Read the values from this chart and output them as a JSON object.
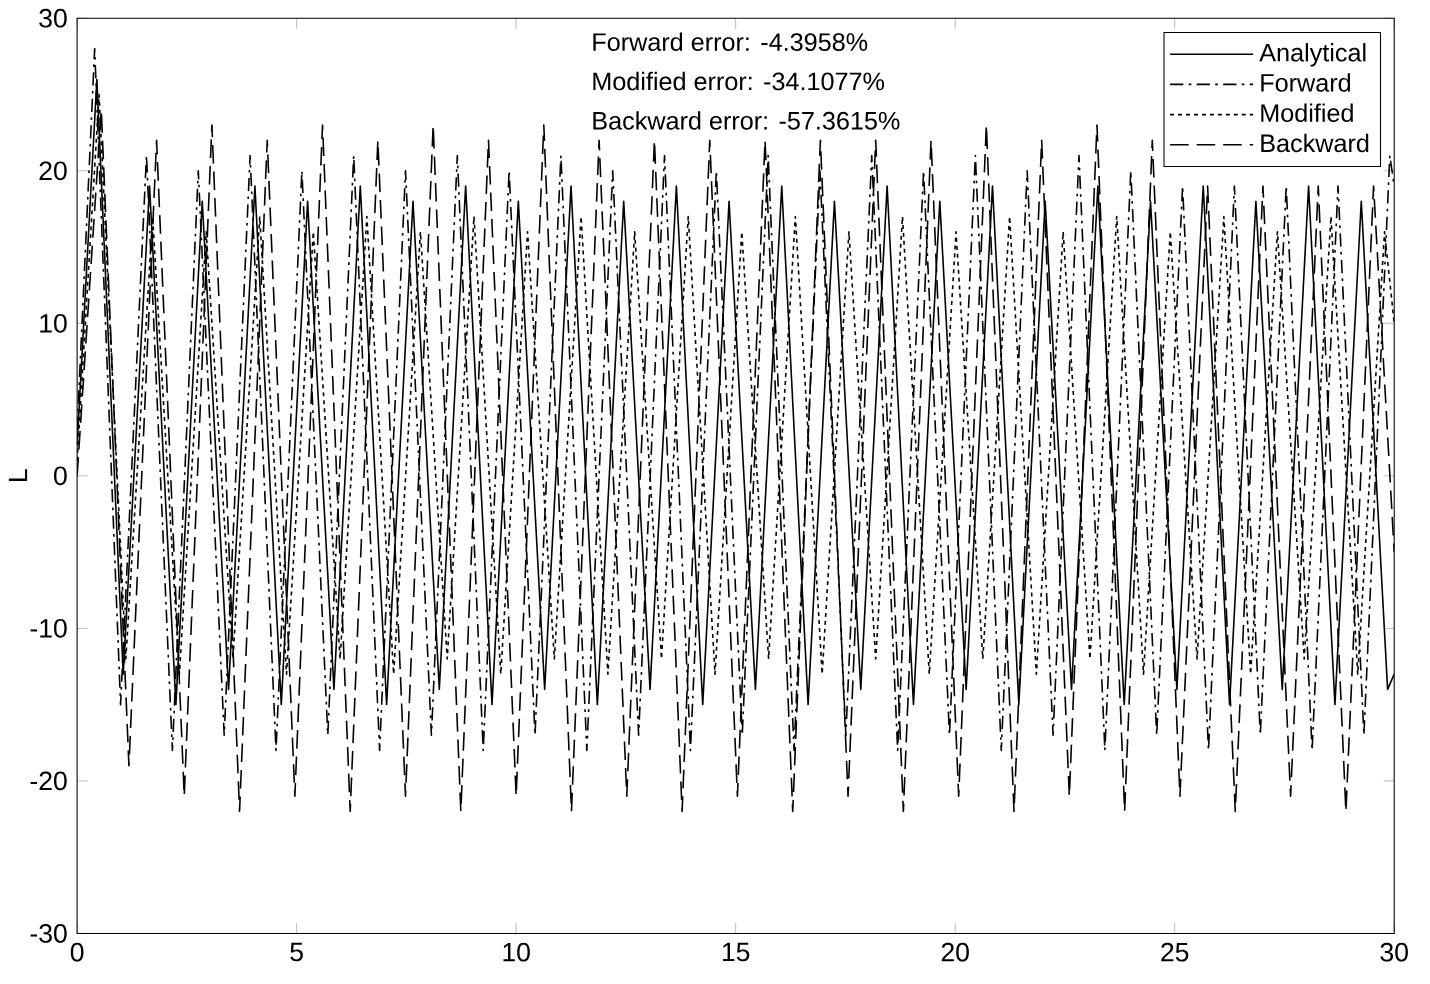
{
  "chart_data": {
    "type": "line",
    "ylabel": "L",
    "xlim": [
      0,
      30
    ],
    "ylim": [
      -30,
      30
    ],
    "xticks": [
      0,
      5,
      10,
      15,
      20,
      25,
      30
    ],
    "yticks": [
      -30,
      -20,
      -10,
      0,
      10,
      20,
      30
    ],
    "grid": false,
    "legend": "top right",
    "marker": "none",
    "annotations": [
      "Forward error: -4.3958%",
      "Modified error: -34.1077%",
      "Backward error: -57.3615%"
    ],
    "series": [
      {
        "name": "Analytical",
        "color": "#000000",
        "line_style": "solid",
        "x": [
          0,
          0.45,
          1.05,
          1.65,
          2.25,
          2.85,
          3.45,
          4.05,
          4.65,
          5.25,
          5.85,
          6.45,
          7.05,
          7.65,
          8.25,
          8.85,
          9.45,
          10.05,
          10.65,
          11.25,
          11.85,
          12.45,
          13.05,
          13.65,
          14.25,
          14.85,
          15.45,
          16.05,
          16.65,
          17.25,
          17.85,
          18.45,
          19.05,
          19.65,
          20.25,
          20.85,
          21.45,
          22.05,
          22.65,
          23.25,
          23.85,
          24.45,
          25.05,
          25.65,
          26.25,
          26.85,
          27.45,
          28.05,
          28.65,
          29.25,
          29.85,
          30
        ],
        "values": [
          2,
          26,
          -13,
          19,
          -15,
          18,
          -14,
          19,
          -15,
          18,
          -14,
          19,
          -15,
          18,
          -14,
          19,
          -15,
          18,
          -14,
          19,
          -15,
          18,
          -14,
          19,
          -15,
          18,
          -14,
          19,
          -15,
          18,
          -14,
          19,
          -15,
          18,
          -14,
          19,
          -15,
          18,
          -14,
          19,
          -15,
          18,
          -14,
          19,
          -15,
          18,
          -14,
          19,
          -15,
          18,
          -14,
          -13
        ]
      },
      {
        "name": "Forward",
        "color": "#000000",
        "line_style": "dashdot",
        "x": [
          0,
          0.4,
          0.99,
          1.58,
          2.17,
          2.76,
          3.35,
          3.94,
          4.53,
          5.12,
          5.71,
          6.3,
          6.89,
          7.48,
          8.07,
          8.66,
          9.25,
          9.84,
          10.43,
          11.02,
          11.61,
          12.2,
          12.79,
          13.38,
          13.97,
          14.56,
          15.15,
          15.74,
          16.33,
          16.92,
          17.51,
          18.1,
          18.69,
          19.28,
          19.87,
          20.46,
          21.05,
          21.64,
          22.23,
          22.82,
          23.41,
          24.0,
          24.59,
          25.18,
          25.77,
          26.36,
          26.95,
          27.54,
          28.13,
          28.72,
          29.31,
          29.9,
          30
        ],
        "values": [
          3,
          28,
          -15,
          21,
          -18,
          20,
          -17,
          21,
          -18,
          20,
          -17,
          21,
          -18,
          20,
          -17,
          21,
          -18,
          20,
          -17,
          21,
          -18,
          20,
          -17,
          21,
          -18,
          20,
          -17,
          21,
          -18,
          20,
          -17,
          21,
          -18,
          20,
          -17,
          21,
          -18,
          20,
          -17,
          21,
          -18,
          20,
          -17,
          19,
          -18,
          19,
          -17,
          19,
          -18,
          19,
          -17,
          21,
          19
        ]
      },
      {
        "name": "Modified",
        "color": "#000000",
        "line_style": "dotted",
        "x": [
          0,
          0.5,
          1.11,
          1.72,
          2.33,
          2.94,
          3.55,
          4.16,
          4.77,
          5.38,
          5.99,
          6.6,
          7.21,
          7.82,
          8.43,
          9.04,
          9.65,
          10.26,
          10.87,
          11.48,
          12.09,
          12.7,
          13.31,
          13.92,
          14.53,
          15.14,
          15.75,
          16.36,
          16.97,
          17.58,
          18.19,
          18.8,
          19.41,
          20.02,
          20.63,
          21.24,
          21.85,
          22.46,
          23.07,
          23.68,
          24.29,
          24.9,
          25.51,
          26.12,
          26.73,
          27.34,
          27.95,
          28.56,
          29.17,
          29.78,
          30
        ],
        "values": [
          1,
          25,
          -12,
          17,
          -13,
          16,
          -12,
          17,
          -13,
          16,
          -12,
          17,
          -13,
          16,
          -12,
          17,
          -13,
          16,
          -12,
          17,
          -13,
          16,
          -12,
          17,
          -13,
          16,
          -12,
          17,
          -13,
          16,
          -12,
          17,
          -13,
          16,
          -12,
          17,
          -13,
          16,
          -12,
          17,
          -13,
          16,
          -12,
          17,
          -13,
          16,
          -12,
          17,
          -13,
          16,
          10
        ]
      },
      {
        "name": "Backward",
        "color": "#000000",
        "line_style": "dashed",
        "x": [
          0,
          0.55,
          1.18,
          1.81,
          2.44,
          3.07,
          3.7,
          4.33,
          4.96,
          5.59,
          6.22,
          6.85,
          7.48,
          8.11,
          8.74,
          9.37,
          10.0,
          10.63,
          11.26,
          11.89,
          12.52,
          13.15,
          13.78,
          14.41,
          15.04,
          15.67,
          16.3,
          16.93,
          17.56,
          18.19,
          18.82,
          19.45,
          20.08,
          20.71,
          21.34,
          21.97,
          22.6,
          23.23,
          23.86,
          24.49,
          25.12,
          25.75,
          26.38,
          27.01,
          27.64,
          28.27,
          28.9,
          29.53,
          30
        ],
        "values": [
          0,
          24,
          -19,
          22,
          -21,
          23,
          -22,
          22,
          -21,
          23,
          -22,
          22,
          -21,
          23,
          -22,
          22,
          -21,
          23,
          -22,
          22,
          -21,
          22,
          -22,
          22,
          -21,
          22,
          -22,
          22,
          -21,
          22,
          -22,
          22,
          -21,
          23,
          -22,
          22,
          -21,
          23,
          -22,
          22,
          -21,
          19,
          -22,
          19,
          -21,
          19,
          -22,
          19,
          -5
        ]
      }
    ]
  }
}
